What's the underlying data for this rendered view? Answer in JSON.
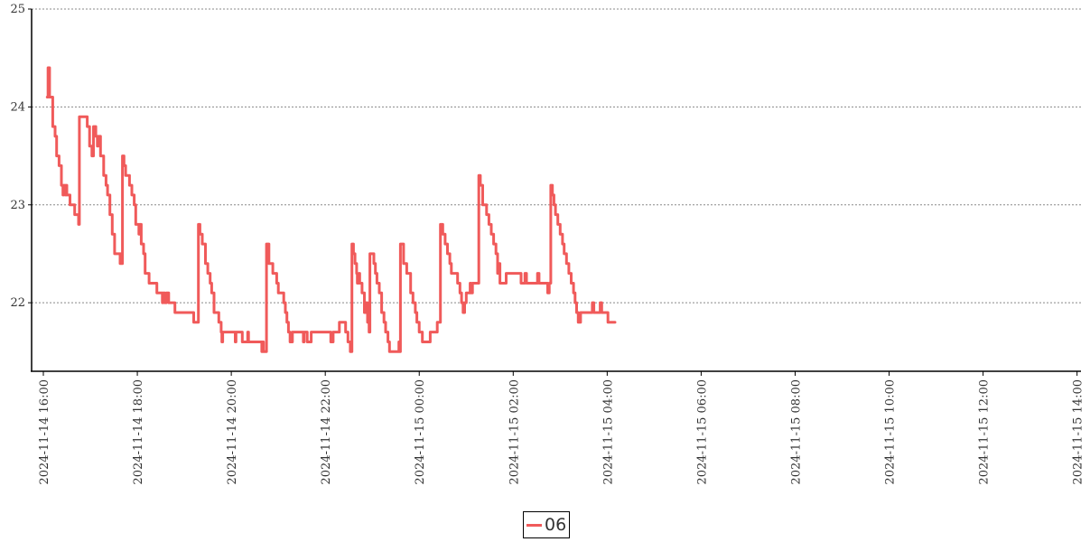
{
  "chart_data": {
    "type": "line",
    "title": "",
    "xlabel": "",
    "ylabel": "",
    "xlim": [
      "2024-11-14 15:45",
      "2024-11-15 14:05"
    ],
    "ylim": [
      21.3,
      25
    ],
    "y_ticks": [
      "22",
      "23",
      "24",
      "25"
    ],
    "x_ticks": [
      "2024-11-14 16:00",
      "2024-11-14 18:00",
      "2024-11-14 20:00",
      "2024-11-14 22:00",
      "2024-11-15 00:00",
      "2024-11-15 02:00",
      "2024-11-15 04:00",
      "2024-11-15 06:00",
      "2024-11-15 08:00",
      "2024-11-15 10:00",
      "2024-11-15 12:00",
      "2024-11-15 14:00"
    ],
    "grid": "horizontal-dotted",
    "legend": "bottom-center",
    "series": [
      {
        "name": "06",
        "color": "#f05a5a",
        "points": [
          [
            "2024-11-14 16:05",
            24.1
          ],
          [
            "2024-11-14 16:06",
            24.4
          ],
          [
            "2024-11-14 16:08",
            24.1
          ],
          [
            "2024-11-14 16:12",
            23.8
          ],
          [
            "2024-11-14 16:15",
            23.7
          ],
          [
            "2024-11-14 16:17",
            23.5
          ],
          [
            "2024-11-14 16:20",
            23.4
          ],
          [
            "2024-11-14 16:23",
            23.2
          ],
          [
            "2024-11-14 16:25",
            23.1
          ],
          [
            "2024-11-14 16:26",
            23.2
          ],
          [
            "2024-11-14 16:28",
            23.1
          ],
          [
            "2024-11-14 16:29",
            23.2
          ],
          [
            "2024-11-14 16:30",
            23.1
          ],
          [
            "2024-11-14 16:34",
            23.0
          ],
          [
            "2024-11-14 16:40",
            22.9
          ],
          [
            "2024-11-14 16:45",
            22.8
          ],
          [
            "2024-11-14 16:46",
            23.9
          ],
          [
            "2024-11-14 16:53",
            23.9
          ],
          [
            "2024-11-14 16:56",
            23.8
          ],
          [
            "2024-11-14 16:59",
            23.6
          ],
          [
            "2024-11-14 17:02",
            23.5
          ],
          [
            "2024-11-14 17:04",
            23.8
          ],
          [
            "2024-11-14 17:07",
            23.7
          ],
          [
            "2024-11-14 17:09",
            23.6
          ],
          [
            "2024-11-14 17:10",
            23.7
          ],
          [
            "2024-11-14 17:13",
            23.5
          ],
          [
            "2024-11-14 17:17",
            23.3
          ],
          [
            "2024-11-14 17:20",
            23.2
          ],
          [
            "2024-11-14 17:22",
            23.1
          ],
          [
            "2024-11-14 17:25",
            22.9
          ],
          [
            "2024-11-14 17:28",
            22.7
          ],
          [
            "2024-11-14 17:31",
            22.5
          ],
          [
            "2024-11-14 17:36",
            22.5
          ],
          [
            "2024-11-14 17:38",
            22.4
          ],
          [
            "2024-11-14 17:39",
            22.5
          ],
          [
            "2024-11-14 17:40",
            22.4
          ],
          [
            "2024-11-14 17:41",
            23.5
          ],
          [
            "2024-11-14 17:43",
            23.4
          ],
          [
            "2024-11-14 17:45",
            23.3
          ],
          [
            "2024-11-14 17:50",
            23.2
          ],
          [
            "2024-11-14 17:53",
            23.1
          ],
          [
            "2024-11-14 17:56",
            23.0
          ],
          [
            "2024-11-14 17:58",
            22.8
          ],
          [
            "2024-11-14 18:02",
            22.7
          ],
          [
            "2024-11-14 18:03",
            22.8
          ],
          [
            "2024-11-14 18:05",
            22.6
          ],
          [
            "2024-11-14 18:08",
            22.5
          ],
          [
            "2024-11-14 18:10",
            22.3
          ],
          [
            "2024-11-14 18:15",
            22.2
          ],
          [
            "2024-11-14 18:25",
            22.1
          ],
          [
            "2024-11-14 18:32",
            22.0
          ],
          [
            "2024-11-14 18:33",
            22.1
          ],
          [
            "2024-11-14 18:35",
            22.0
          ],
          [
            "2024-11-14 18:37",
            22.1
          ],
          [
            "2024-11-14 18:40",
            22.0
          ],
          [
            "2024-11-14 18:48",
            21.9
          ],
          [
            "2024-11-14 19:12",
            21.8
          ],
          [
            "2024-11-14 19:18",
            22.8
          ],
          [
            "2024-11-14 19:20",
            22.7
          ],
          [
            "2024-11-14 19:23",
            22.6
          ],
          [
            "2024-11-14 19:27",
            22.4
          ],
          [
            "2024-11-14 19:30",
            22.3
          ],
          [
            "2024-11-14 19:33",
            22.2
          ],
          [
            "2024-11-14 19:35",
            22.1
          ],
          [
            "2024-11-14 19:38",
            21.9
          ],
          [
            "2024-11-14 19:44",
            21.8
          ],
          [
            "2024-11-14 19:47",
            21.7
          ],
          [
            "2024-11-14 19:48",
            21.6
          ],
          [
            "2024-11-14 19:49",
            21.7
          ],
          [
            "2024-11-14 20:04",
            21.7
          ],
          [
            "2024-11-14 20:05",
            21.6
          ],
          [
            "2024-11-14 20:06",
            21.7
          ],
          [
            "2024-11-14 20:12",
            21.7
          ],
          [
            "2024-11-14 20:14",
            21.6
          ],
          [
            "2024-11-14 20:20",
            21.6
          ],
          [
            "2024-11-14 20:21",
            21.7
          ],
          [
            "2024-11-14 20:22",
            21.6
          ],
          [
            "2024-11-14 20:38",
            21.6
          ],
          [
            "2024-11-14 20:39",
            21.5
          ],
          [
            "2024-11-14 20:40",
            21.6
          ],
          [
            "2024-11-14 20:41",
            21.5
          ],
          [
            "2024-11-14 20:44",
            21.5
          ],
          [
            "2024-11-14 20:45",
            22.6
          ],
          [
            "2024-11-14 20:48",
            22.4
          ],
          [
            "2024-11-14 20:53",
            22.3
          ],
          [
            "2024-11-14 20:58",
            22.2
          ],
          [
            "2024-11-14 21:00",
            22.1
          ],
          [
            "2024-11-14 21:07",
            22.0
          ],
          [
            "2024-11-14 21:09",
            21.9
          ],
          [
            "2024-11-14 21:11",
            21.8
          ],
          [
            "2024-11-14 21:13",
            21.7
          ],
          [
            "2024-11-14 21:15",
            21.6
          ],
          [
            "2024-11-14 21:18",
            21.7
          ],
          [
            "2024-11-14 21:31",
            21.7
          ],
          [
            "2024-11-14 21:32",
            21.6
          ],
          [
            "2024-11-14 21:33",
            21.7
          ],
          [
            "2024-11-14 21:36",
            21.7
          ],
          [
            "2024-11-14 21:37",
            21.6
          ],
          [
            "2024-11-14 21:41",
            21.6
          ],
          [
            "2024-11-14 21:42",
            21.7
          ],
          [
            "2024-11-14 22:06",
            21.7
          ],
          [
            "2024-11-14 22:07",
            21.6
          ],
          [
            "2024-11-14 22:10",
            21.7
          ],
          [
            "2024-11-14 22:18",
            21.8
          ],
          [
            "2024-11-14 22:26",
            21.7
          ],
          [
            "2024-11-14 22:29",
            21.6
          ],
          [
            "2024-11-14 22:32",
            21.5
          ],
          [
            "2024-11-14 22:34",
            22.6
          ],
          [
            "2024-11-14 22:36",
            22.5
          ],
          [
            "2024-11-14 22:38",
            22.4
          ],
          [
            "2024-11-14 22:40",
            22.3
          ],
          [
            "2024-11-14 22:41",
            22.2
          ],
          [
            "2024-11-14 22:43",
            22.3
          ],
          [
            "2024-11-14 22:44",
            22.2
          ],
          [
            "2024-11-14 22:47",
            22.1
          ],
          [
            "2024-11-14 22:50",
            21.9
          ],
          [
            "2024-11-14 22:52",
            22.0
          ],
          [
            "2024-11-14 22:54",
            21.8
          ],
          [
            "2024-11-14 22:56",
            21.7
          ],
          [
            "2024-11-14 22:57",
            22.5
          ],
          [
            "2024-11-14 23:02",
            22.4
          ],
          [
            "2024-11-14 23:04",
            22.3
          ],
          [
            "2024-11-14 23:06",
            22.2
          ],
          [
            "2024-11-14 23:09",
            22.1
          ],
          [
            "2024-11-14 23:12",
            21.9
          ],
          [
            "2024-11-14 23:15",
            21.8
          ],
          [
            "2024-11-14 23:17",
            21.7
          ],
          [
            "2024-11-14 23:20",
            21.6
          ],
          [
            "2024-11-14 23:22",
            21.5
          ],
          [
            "2024-11-14 23:32",
            21.5
          ],
          [
            "2024-11-14 23:34",
            21.6
          ],
          [
            "2024-11-14 23:35",
            21.5
          ],
          [
            "2024-11-14 23:36",
            22.6
          ],
          [
            "2024-11-14 23:40",
            22.4
          ],
          [
            "2024-11-14 23:44",
            22.3
          ],
          [
            "2024-11-14 23:49",
            22.1
          ],
          [
            "2024-11-14 23:52",
            22.0
          ],
          [
            "2024-11-14 23:55",
            21.9
          ],
          [
            "2024-11-14 23:57",
            21.8
          ],
          [
            "2024-11-15 00:00",
            21.7
          ],
          [
            "2024-11-15 00:04",
            21.6
          ],
          [
            "2024-11-15 00:12",
            21.6
          ],
          [
            "2024-11-15 00:14",
            21.7
          ],
          [
            "2024-11-15 00:22",
            21.7
          ],
          [
            "2024-11-15 00:23",
            21.8
          ],
          [
            "2024-11-15 00:27",
            22.8
          ],
          [
            "2024-11-15 00:30",
            22.7
          ],
          [
            "2024-11-15 00:33",
            22.6
          ],
          [
            "2024-11-15 00:36",
            22.5
          ],
          [
            "2024-11-15 00:39",
            22.4
          ],
          [
            "2024-11-15 00:41",
            22.3
          ],
          [
            "2024-11-15 00:49",
            22.2
          ],
          [
            "2024-11-15 00:52",
            22.1
          ],
          [
            "2024-11-15 00:54",
            22.0
          ],
          [
            "2024-11-15 00:56",
            21.9
          ],
          [
            "2024-11-15 00:58",
            22.0
          ],
          [
            "2024-11-15 01:00",
            22.1
          ],
          [
            "2024-11-15 01:05",
            22.2
          ],
          [
            "2024-11-15 01:06",
            22.1
          ],
          [
            "2024-11-15 01:08",
            22.2
          ],
          [
            "2024-11-15 01:15",
            22.2
          ],
          [
            "2024-11-15 01:16",
            23.3
          ],
          [
            "2024-11-15 01:18",
            23.2
          ],
          [
            "2024-11-15 01:21",
            23.0
          ],
          [
            "2024-11-15 01:26",
            22.9
          ],
          [
            "2024-11-15 01:29",
            22.8
          ],
          [
            "2024-11-15 01:32",
            22.7
          ],
          [
            "2024-11-15 01:35",
            22.6
          ],
          [
            "2024-11-15 01:38",
            22.5
          ],
          [
            "2024-11-15 01:40",
            22.3
          ],
          [
            "2024-11-15 01:41",
            22.4
          ],
          [
            "2024-11-15 01:43",
            22.2
          ],
          [
            "2024-11-15 01:49",
            22.2
          ],
          [
            "2024-11-15 01:51",
            22.3
          ],
          [
            "2024-11-15 02:08",
            22.3
          ],
          [
            "2024-11-15 02:10",
            22.2
          ],
          [
            "2024-11-15 02:14",
            22.2
          ],
          [
            "2024-11-15 02:15",
            22.3
          ],
          [
            "2024-11-15 02:17",
            22.2
          ],
          [
            "2024-11-15 02:29",
            22.2
          ],
          [
            "2024-11-15 02:31",
            22.3
          ],
          [
            "2024-11-15 02:33",
            22.2
          ],
          [
            "2024-11-15 02:42",
            22.2
          ],
          [
            "2024-11-15 02:44",
            22.1
          ],
          [
            "2024-11-15 02:46",
            22.2
          ],
          [
            "2024-11-15 02:48",
            23.2
          ],
          [
            "2024-11-15 02:50",
            23.1
          ],
          [
            "2024-11-15 02:52",
            23.0
          ],
          [
            "2024-11-15 02:54",
            22.9
          ],
          [
            "2024-11-15 02:57",
            22.8
          ],
          [
            "2024-11-15 03:00",
            22.7
          ],
          [
            "2024-11-15 03:03",
            22.6
          ],
          [
            "2024-11-15 03:05",
            22.5
          ],
          [
            "2024-11-15 03:08",
            22.4
          ],
          [
            "2024-11-15 03:11",
            22.3
          ],
          [
            "2024-11-15 03:14",
            22.2
          ],
          [
            "2024-11-15 03:17",
            22.1
          ],
          [
            "2024-11-15 03:19",
            22.0
          ],
          [
            "2024-11-15 03:21",
            21.9
          ],
          [
            "2024-11-15 03:23",
            21.8
          ],
          [
            "2024-11-15 03:26",
            21.9
          ],
          [
            "2024-11-15 03:40",
            21.9
          ],
          [
            "2024-11-15 03:41",
            22.0
          ],
          [
            "2024-11-15 03:43",
            21.9
          ],
          [
            "2024-11-15 03:50",
            21.9
          ],
          [
            "2024-11-15 03:51",
            22.0
          ],
          [
            "2024-11-15 03:53",
            21.9
          ],
          [
            "2024-11-15 04:00",
            21.9
          ],
          [
            "2024-11-15 04:01",
            21.8
          ],
          [
            "2024-11-15 04:10",
            21.8
          ]
        ]
      }
    ]
  }
}
